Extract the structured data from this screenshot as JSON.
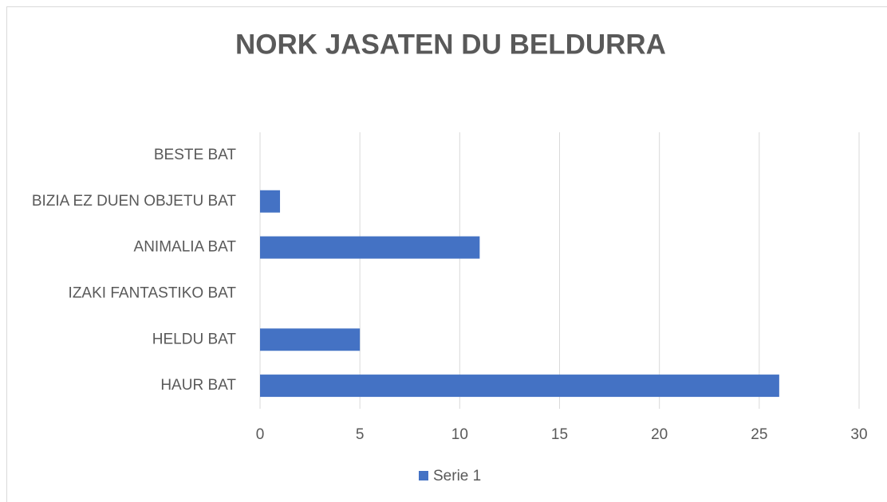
{
  "chart_data": {
    "type": "bar",
    "orientation": "horizontal",
    "title": "NORK JASATEN DU BELDURRA",
    "categories": [
      "HAUR BAT",
      "HELDU BAT",
      "IZAKI FANTASTIKO BAT",
      "ANIMALIA BAT",
      "BIZIA EZ DUEN OBJETU BAT",
      "BESTE BAT"
    ],
    "series": [
      {
        "name": "Serie 1",
        "color": "#4472c4",
        "values": [
          26,
          5,
          0,
          11,
          1,
          0
        ]
      }
    ],
    "xlim": [
      0,
      30
    ],
    "xticks": [
      0,
      5,
      10,
      15,
      20,
      25,
      30
    ],
    "grid": true,
    "legend": "bottom"
  }
}
